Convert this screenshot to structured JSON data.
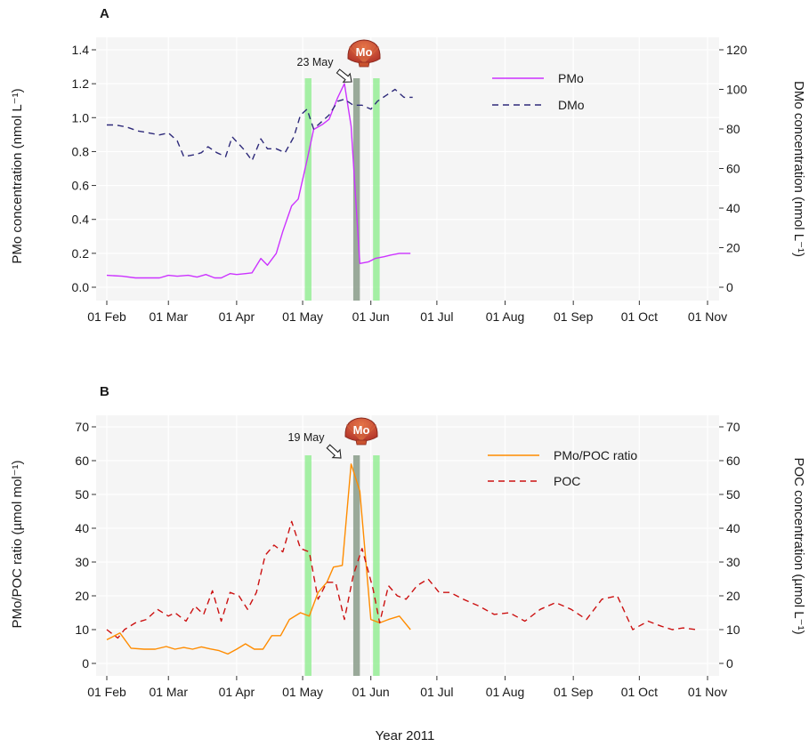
{
  "figure": {
    "xlabel": "Year 2011",
    "colors": {
      "pmo": "#cc33ff",
      "dmo": "#2e2a7a",
      "ratio": "#ff8c00",
      "poc": "#cc1111",
      "green_band": "#90ee90",
      "grey_band": "#7a8f7a",
      "panel_bg": "#f5f5f5"
    },
    "icon": "scallop-shell-icon",
    "icon_text": "Mo"
  },
  "chart_data": [
    {
      "panel": "A",
      "type": "line",
      "ylabel_left": "PMo concentration (nmol L⁻¹)",
      "ylabel_right": "DMo concentration (nmol L⁻¹)",
      "x_ticks": [
        "01 Feb",
        "01 Mar",
        "01 Apr",
        "01 May",
        "01 Jun",
        "01 Jul",
        "01 Aug",
        "01 Sep",
        "01 Oct",
        "01 Nov"
      ],
      "ylim_left": [
        0,
        1.4
      ],
      "y_ticks_left": [
        "0.0",
        "0.2",
        "0.4",
        "0.6",
        "0.8",
        "1.0",
        "1.2",
        "1.4"
      ],
      "ylim_right": [
        0,
        120
      ],
      "y_ticks_right": [
        "0",
        "20",
        "40",
        "60",
        "80",
        "100",
        "120"
      ],
      "annotation": "23 May",
      "legend_position": "top-right",
      "green_bands": [
        [
          "2011-05-02",
          "2011-05-05"
        ],
        [
          "2011-06-02",
          "2011-06-05"
        ]
      ],
      "grey_bands": [
        [
          "2011-05-24",
          "2011-05-27"
        ]
      ],
      "series": [
        {
          "name": "PMo",
          "axis": "left",
          "style": "solid",
          "x": [
            "2011-02-01",
            "2011-02-08",
            "2011-02-14",
            "2011-02-21",
            "2011-02-25",
            "2011-03-01",
            "2011-03-05",
            "2011-03-10",
            "2011-03-14",
            "2011-03-18",
            "2011-03-22",
            "2011-03-25",
            "2011-03-29",
            "2011-04-01",
            "2011-04-05",
            "2011-04-08",
            "2011-04-12",
            "2011-04-15",
            "2011-04-19",
            "2011-04-22",
            "2011-04-26",
            "2011-04-29",
            "2011-05-03",
            "2011-05-06",
            "2011-05-10",
            "2011-05-13",
            "2011-05-17",
            "2011-05-20",
            "2011-05-23",
            "2011-05-27",
            "2011-05-31",
            "2011-06-03",
            "2011-06-07",
            "2011-06-10",
            "2011-06-14",
            "2011-06-19"
          ],
          "values": [
            0.07,
            0.065,
            0.055,
            0.055,
            0.055,
            0.07,
            0.065,
            0.07,
            0.06,
            0.075,
            0.055,
            0.055,
            0.08,
            0.075,
            0.08,
            0.085,
            0.17,
            0.13,
            0.2,
            0.33,
            0.48,
            0.52,
            0.75,
            0.93,
            0.96,
            0.99,
            1.12,
            1.2,
            0.95,
            0.14,
            0.15,
            0.17,
            0.18,
            0.19,
            0.2,
            0.2
          ]
        },
        {
          "name": "DMo",
          "axis": "right",
          "style": "dashed",
          "x": [
            "2011-02-01",
            "2011-02-05",
            "2011-02-10",
            "2011-02-15",
            "2011-02-20",
            "2011-02-25",
            "2011-03-01",
            "2011-03-05",
            "2011-03-08",
            "2011-03-13",
            "2011-03-16",
            "2011-03-19",
            "2011-03-23",
            "2011-03-27",
            "2011-03-30",
            "2011-04-04",
            "2011-04-08",
            "2011-04-12",
            "2011-04-15",
            "2011-04-19",
            "2011-04-23",
            "2011-04-27",
            "2011-04-30",
            "2011-05-03",
            "2011-05-06",
            "2011-05-09",
            "2011-05-13",
            "2011-05-17",
            "2011-05-20",
            "2011-05-24",
            "2011-05-28",
            "2011-06-01",
            "2011-06-04",
            "2011-06-08",
            "2011-06-12",
            "2011-06-16",
            "2011-06-20"
          ],
          "values": [
            82,
            82,
            81,
            79,
            78,
            77,
            78,
            74,
            66,
            67,
            68,
            71,
            68,
            66,
            76,
            70,
            64,
            75,
            70,
            70,
            68,
            76,
            87,
            90,
            80,
            83,
            87,
            94,
            95,
            92,
            92,
            90,
            94,
            97,
            100,
            96,
            96
          ]
        }
      ]
    },
    {
      "panel": "B",
      "type": "line",
      "ylabel_left": "PMo/POC ratio (µmol mol⁻¹)",
      "ylabel_right": "POC concentration (µmol L⁻¹)",
      "x_ticks": [
        "01 Feb",
        "01 Mar",
        "01 Apr",
        "01 May",
        "01 Jun",
        "01 Jul",
        "01 Aug",
        "01 Sep",
        "01 Oct",
        "01 Nov"
      ],
      "ylim_left": [
        0,
        70
      ],
      "y_ticks_left": [
        "0",
        "10",
        "20",
        "30",
        "40",
        "50",
        "60",
        "70"
      ],
      "ylim_right": [
        0,
        70
      ],
      "y_ticks_right": [
        "0",
        "10",
        "20",
        "30",
        "40",
        "50",
        "60",
        "70"
      ],
      "annotation": "19 May",
      "legend_position": "top-right",
      "green_bands": [
        [
          "2011-05-02",
          "2011-05-05"
        ],
        [
          "2011-06-02",
          "2011-06-05"
        ]
      ],
      "grey_bands": [
        [
          "2011-05-24",
          "2011-05-27"
        ]
      ],
      "series": [
        {
          "name": "PMo/POC ratio",
          "axis": "left",
          "style": "solid",
          "x": [
            "2011-02-01",
            "2011-02-07",
            "2011-02-12",
            "2011-02-18",
            "2011-02-23",
            "2011-02-28",
            "2011-03-04",
            "2011-03-08",
            "2011-03-12",
            "2011-03-16",
            "2011-03-20",
            "2011-03-24",
            "2011-03-28",
            "2011-04-01",
            "2011-04-05",
            "2011-04-09",
            "2011-04-13",
            "2011-04-17",
            "2011-04-21",
            "2011-04-25",
            "2011-04-30",
            "2011-05-04",
            "2011-05-08",
            "2011-05-12",
            "2011-05-15",
            "2011-05-19",
            "2011-05-23",
            "2011-05-27",
            "2011-06-01",
            "2011-06-05",
            "2011-06-09",
            "2011-06-14",
            "2011-06-19"
          ],
          "values": [
            7,
            9,
            4.5,
            4.2,
            4.2,
            5,
            4.2,
            4.7,
            4.2,
            4.9,
            4.3,
            3.8,
            2.8,
            4.2,
            5.8,
            4.2,
            4.2,
            8.2,
            8.2,
            13,
            15,
            14,
            21,
            24,
            28.5,
            29,
            59,
            51,
            13,
            12,
            13,
            14,
            10
          ]
        },
        {
          "name": "POC",
          "axis": "right",
          "style": "dashed",
          "x": [
            "2011-02-01",
            "2011-02-06",
            "2011-02-09",
            "2011-02-14",
            "2011-02-19",
            "2011-02-24",
            "2011-03-01",
            "2011-03-04",
            "2011-03-09",
            "2011-03-13",
            "2011-03-17",
            "2011-03-21",
            "2011-03-25",
            "2011-03-29",
            "2011-04-02",
            "2011-04-06",
            "2011-04-10",
            "2011-04-14",
            "2011-04-18",
            "2011-04-22",
            "2011-04-26",
            "2011-04-30",
            "2011-05-04",
            "2011-05-08",
            "2011-05-12",
            "2011-05-16",
            "2011-05-20",
            "2011-05-24",
            "2011-05-28",
            "2011-06-02",
            "2011-06-05",
            "2011-06-09",
            "2011-06-13",
            "2011-06-17",
            "2011-06-22",
            "2011-06-27",
            "2011-07-02",
            "2011-07-07",
            "2011-07-13",
            "2011-07-20",
            "2011-07-27",
            "2011-08-03",
            "2011-08-10",
            "2011-08-17",
            "2011-08-24",
            "2011-08-31",
            "2011-09-07",
            "2011-09-14",
            "2011-09-21",
            "2011-09-28",
            "2011-10-05",
            "2011-10-11",
            "2011-10-16",
            "2011-10-21",
            "2011-10-27"
          ],
          "values": [
            10,
            7.5,
            10,
            12,
            13,
            16,
            14,
            15,
            12.5,
            17,
            14.5,
            21.5,
            12.5,
            21,
            20,
            16,
            21,
            32,
            35,
            33,
            42,
            34,
            33,
            19,
            24,
            24,
            13,
            26,
            34,
            22,
            12,
            23,
            20,
            19,
            23,
            25,
            21,
            21,
            19,
            17,
            14.5,
            15,
            12.5,
            16,
            18,
            16,
            13,
            19,
            20,
            10,
            12.5,
            11,
            10,
            10.5,
            10
          ]
        }
      ]
    }
  ]
}
